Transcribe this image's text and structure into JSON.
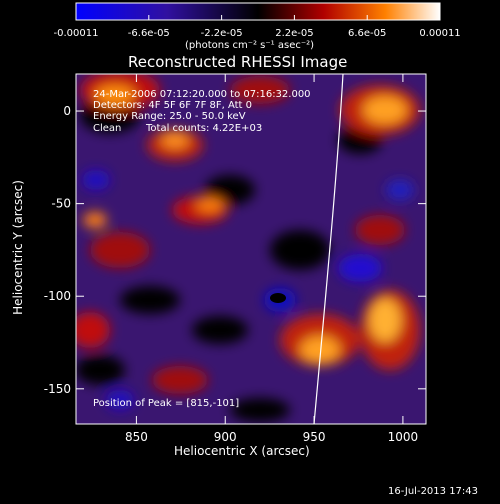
{
  "chart_data": {
    "type": "heatmap",
    "title": "Reconstructed RHESSI Image",
    "xlabel": "Heliocentric X (arcsec)",
    "ylabel": "Heliocentric Y (arcsec)",
    "xlim": [
      816,
      1013
    ],
    "ylim": [
      -169,
      20
    ],
    "xticks": [
      850,
      900,
      950,
      1000
    ],
    "yticks": [
      0,
      -50,
      -100,
      -150
    ],
    "colorbar": {
      "ticks": [
        "-0.00011",
        "-6.6e-05",
        "-2.2e-05",
        "2.2e-05",
        "6.6e-05",
        "0.00011"
      ],
      "unit_label": "(photons cm⁻² s⁻¹ asec⁻²)",
      "range": [
        -0.00011,
        0.00011
      ]
    },
    "annotations": {
      "time_range": "24-Mar-2006 07:12:20.000 to 07:16:32.000",
      "detectors": "Detectors: 4F 5F 6F 7F 8F, Att 0",
      "energy": "Energy Range: 25.0 - 50.0 keV",
      "clean": "Clean",
      "counts": "Total counts: 4.22E+03",
      "peak": "Position of Peak = [815,-101]"
    },
    "timestamp": "16-Jul-2013 17:43"
  }
}
